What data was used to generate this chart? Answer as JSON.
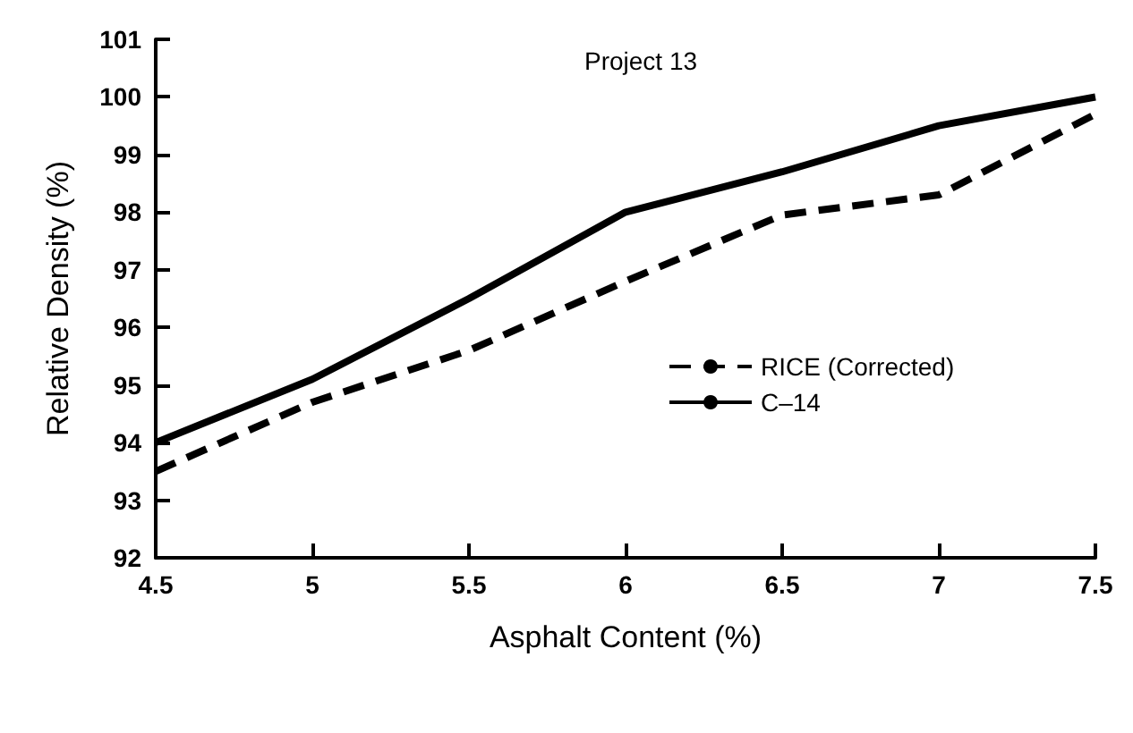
{
  "chart_data": {
    "type": "line",
    "title": "Project 13",
    "xlabel": "Asphalt Content (%)",
    "ylabel": "Relative Density (%)",
    "x": [
      4.5,
      5,
      5.5,
      6,
      6.5,
      7,
      7.5
    ],
    "series": [
      {
        "name": "RICE (Corrected)",
        "color": "#000000",
        "line_style": "dashed",
        "values": [
          93.5,
          94.7,
          95.6,
          96.8,
          97.95,
          98.3,
          99.7
        ]
      },
      {
        "name": "C–14",
        "color": "#000000",
        "line_style": "solid",
        "values": [
          94.0,
          95.1,
          96.5,
          98.0,
          98.7,
          99.5,
          100.0
        ]
      }
    ],
    "xlim": [
      4.5,
      7.5
    ],
    "xticks": [
      4.5,
      5,
      5.5,
      6,
      6.5,
      7,
      7.5
    ],
    "ylim": [
      92,
      101
    ],
    "yticks": [
      92,
      93,
      94,
      95,
      96,
      97,
      98,
      99,
      100,
      101
    ],
    "grid": false,
    "legend": "right",
    "marker": "none"
  }
}
